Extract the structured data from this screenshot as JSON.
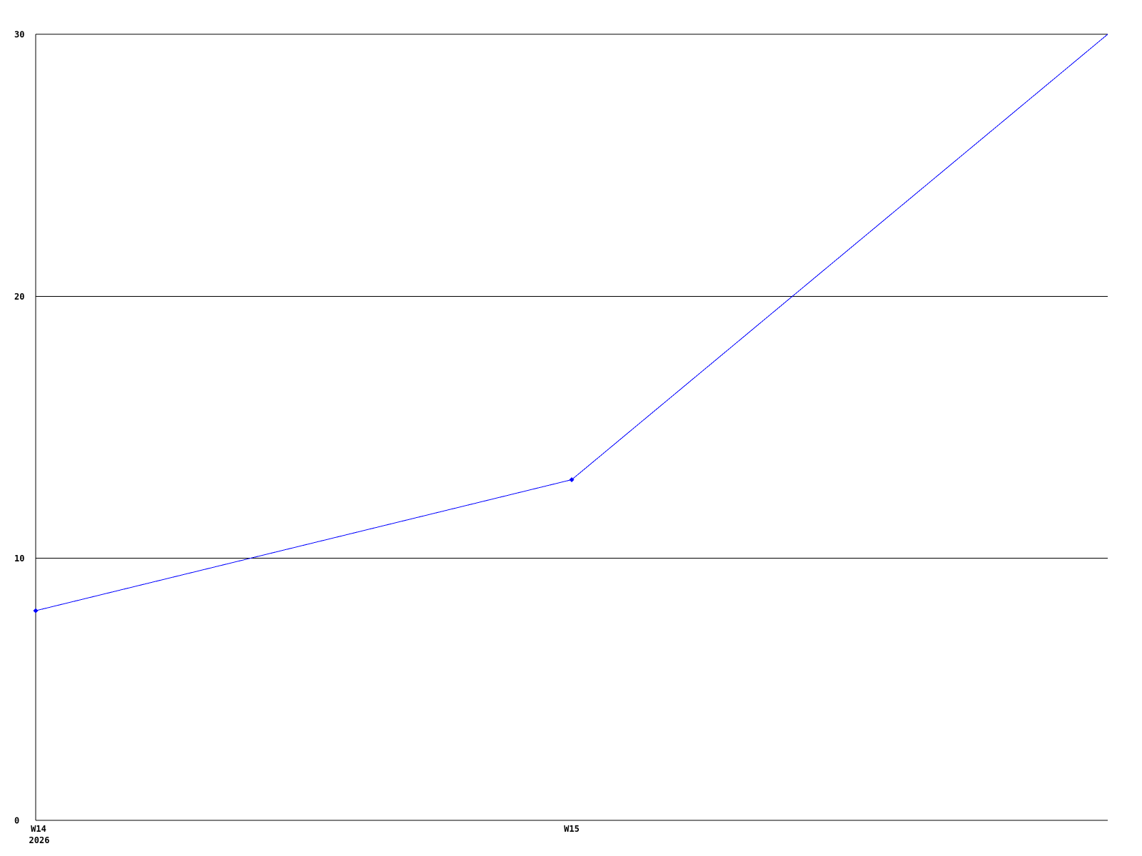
{
  "chart_data": {
    "type": "line",
    "title": "",
    "xlabel": "",
    "ylabel": "",
    "categories": [
      "W14",
      "W15",
      ""
    ],
    "x_sublabels": [
      "2026",
      "",
      ""
    ],
    "series": [
      {
        "name": "",
        "color": "#0000ff",
        "values": [
          8,
          13,
          30
        ],
        "marker_point_indices": [
          0,
          1
        ],
        "marker_shape": "diamond"
      }
    ],
    "ylim": [
      0,
      30
    ],
    "yticks": [
      0,
      10,
      20,
      30
    ],
    "ytick_labels": [
      "0",
      "10",
      "20",
      "30"
    ],
    "gridline_yticks": [
      10,
      20
    ],
    "grid": "horizontal",
    "legend": "none",
    "axis_color": "#000000",
    "text_color": "#000000",
    "background_color": "#ffffff",
    "plot_border": "left-top-bottom"
  }
}
